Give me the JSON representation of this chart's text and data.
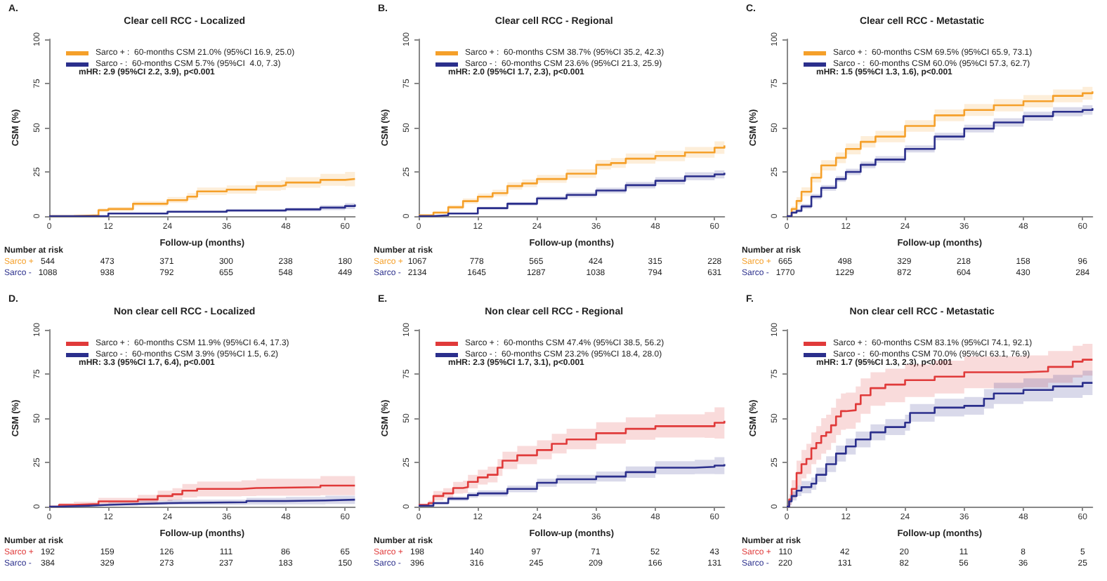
{
  "chart_data": [
    {
      "type": "step",
      "title": "Clear cell RCC - Localized",
      "xlabel": "Follow-up (months)",
      "ylabel": "CSM (%)",
      "xlim": [
        0,
        62
      ],
      "xticks": [
        0,
        12,
        24,
        36,
        48,
        60
      ],
      "ylim": [
        0,
        100
      ],
      "yticks": [
        0,
        25,
        50,
        75,
        100
      ],
      "legend": "top left",
      "annotations": [
        "A.",
        "mHR: 2.9 (95%CI 2.2, 3.9), p<0.001",
        "Number at risk",
        "Sarco +",
        "544",
        "473",
        "371",
        "300",
        "238",
        "180",
        "Sarco -",
        "1088",
        "938",
        "792",
        "655",
        "548",
        "449"
      ],
      "series": [
        {
          "name": "Sarco + :  60-months CSM 21.0% (95%CI 16.9, 25.0)",
          "color": "#f5a02a",
          "x": [
            0,
            5,
            10,
            12,
            17,
            24,
            28,
            30,
            36,
            42,
            47,
            48,
            55,
            60,
            62
          ],
          "values": [
            0,
            0.5,
            3.4,
            4,
            7,
            9,
            11,
            14,
            15,
            17,
            17.5,
            19,
            20.5,
            21,
            21.5
          ],
          "lower": [
            0,
            0.2,
            2.4,
            2.9,
            5.6,
            7.4,
            9.2,
            11.9,
            12.7,
            14.4,
            14.8,
            16.1,
            17.2,
            16.9,
            17.2
          ],
          "upper": [
            0,
            0.9,
            4.5,
            5.2,
            8.5,
            10.8,
            13,
            16.2,
            17.4,
            19.7,
            20.3,
            22,
            23.9,
            25,
            25.9
          ]
        },
        {
          "name": "Sarco - :  60-months CSM 5.7% (95%CI  4.0, 7.3)",
          "color": "#2b2f8c",
          "x": [
            0,
            12,
            24,
            36,
            48,
            55,
            60,
            62
          ],
          "values": [
            0,
            1.5,
            2.5,
            3.2,
            3.8,
            4.8,
            5.7,
            6.5
          ],
          "lower": [
            0,
            1,
            1.8,
            2.3,
            2.7,
            3.4,
            4,
            4.6
          ],
          "upper": [
            0,
            2,
            3.2,
            4.1,
            4.9,
            6.2,
            7.3,
            8.2
          ]
        }
      ]
    },
    {
      "type": "step",
      "title": "Clear cell RCC - Regional",
      "xlabel": "Follow-up (months)",
      "ylabel": "CSM (%)",
      "xlim": [
        0,
        62
      ],
      "xticks": [
        0,
        12,
        24,
        36,
        48,
        60
      ],
      "ylim": [
        0,
        100
      ],
      "yticks": [
        0,
        25,
        50,
        75,
        100
      ],
      "legend": "top left",
      "annotations": [
        "B.",
        "mHR: 2.0 (95%CI 1.7, 2.3), p<0.001",
        "Number at risk",
        "Sarco +",
        "1067",
        "778",
        "565",
        "424",
        "315",
        "228",
        "Sarco -",
        "2134",
        "1645",
        "1287",
        "1038",
        "794",
        "631"
      ],
      "series": [
        {
          "name": "Sarco + :  60-months CSM 38.7% (95%CI 35.2, 42.3)",
          "color": "#f5a02a",
          "x": [
            0,
            3,
            6,
            9,
            12,
            15,
            18,
            21,
            24,
            30,
            36,
            39,
            42,
            48,
            54,
            60,
            62
          ],
          "values": [
            0.5,
            2,
            5,
            8.5,
            11,
            13,
            17,
            18.5,
            21,
            24,
            29,
            30,
            32.5,
            34,
            36,
            38.7,
            40
          ],
          "lower": [
            0.2,
            1.3,
            3.8,
            7,
            9.3,
            11.2,
            15,
            16.4,
            18.8,
            21.6,
            26.4,
            27.3,
            29.7,
            31.1,
            33,
            35.2,
            36.5
          ],
          "upper": [
            0.8,
            2.8,
            6.3,
            10,
            12.8,
            14.9,
            19.1,
            20.7,
            23.3,
            26.5,
            31.7,
            32.8,
            35.4,
            37,
            39.1,
            42.3,
            43.6
          ]
        },
        {
          "name": "Sarco - :  60-months CSM 23.6% (95%CI 21.3, 25.9)",
          "color": "#2b2f8c",
          "x": [
            0,
            3,
            6,
            12,
            18,
            24,
            30,
            36,
            42,
            48,
            54,
            60,
            62
          ],
          "values": [
            0,
            0.5,
            1.5,
            4.5,
            7,
            10,
            12,
            14.5,
            17.5,
            20,
            22.5,
            23.6,
            24.5
          ],
          "lower": [
            0,
            0.2,
            1,
            3.7,
            6,
            8.8,
            10.6,
            12.9,
            15.7,
            18,
            20.3,
            21.3,
            22.2
          ],
          "upper": [
            0,
            0.8,
            2,
            5.3,
            8,
            11.2,
            13.4,
            16.1,
            19.3,
            22,
            24.8,
            25.9,
            26.9
          ]
        }
      ]
    },
    {
      "type": "step",
      "title": "Clear cell RCC - Metastatic",
      "xlabel": "Follow-up (months)",
      "ylabel": "CSM (%)",
      "xlim": [
        0,
        62
      ],
      "xticks": [
        0,
        12,
        24,
        36,
        48,
        60
      ],
      "ylim": [
        0,
        100
      ],
      "yticks": [
        0,
        25,
        50,
        75,
        100
      ],
      "legend": "top left",
      "annotations": [
        "C.",
        "mHR: 1.5 (95%CI 1.3, 1.6), p<0.001",
        "Number at risk",
        "Sarco +",
        "665",
        "498",
        "329",
        "218",
        "158",
        "96",
        "Sarco -",
        "1770",
        "1229",
        "872",
        "604",
        "430",
        "284"
      ],
      "series": [
        {
          "name": "Sarco + :  60-months CSM 69.5% (95%CI 65.9, 73.1)",
          "color": "#f5a02a",
          "x": [
            0,
            1,
            2,
            3,
            5,
            7,
            10,
            12,
            15,
            18,
            24,
            30,
            36,
            42,
            48,
            54,
            60,
            62
          ],
          "values": [
            0,
            4,
            8.6,
            13.8,
            21.7,
            28.7,
            33,
            38,
            42,
            45,
            51,
            57,
            60,
            62.7,
            65,
            68,
            69.5,
            70.5
          ],
          "lower": [
            0,
            2.5,
            6.5,
            11.3,
            19,
            25.8,
            30,
            34.9,
            38.8,
            41.8,
            47.7,
            53.7,
            56.6,
            59.2,
            61.5,
            64.4,
            65.9,
            66.8
          ],
          "upper": [
            0,
            5.5,
            10.7,
            16.3,
            24.4,
            31.6,
            36,
            41.1,
            45.2,
            48.2,
            54.3,
            60.3,
            63.4,
            66.2,
            68.5,
            71.6,
            73.1,
            74.2
          ]
        },
        {
          "name": "Sarco - :  60-months CSM 60.0% (95%CI 57.3, 62.7)",
          "color": "#2b2f8c",
          "x": [
            0,
            1,
            2,
            3,
            5,
            7,
            10,
            12,
            15,
            18,
            24,
            30,
            36,
            42,
            48,
            54,
            60,
            62
          ],
          "values": [
            0,
            2,
            3,
            5.5,
            11,
            16,
            21,
            25,
            29,
            32,
            38,
            45,
            49.5,
            53,
            56.5,
            59,
            60,
            61
          ],
          "lower": [
            0,
            1.2,
            2,
            4.2,
            9.5,
            14.4,
            19.3,
            23.2,
            27.1,
            30.1,
            36,
            42.9,
            47.3,
            50.6,
            54,
            56.4,
            57.3,
            58.2
          ],
          "upper": [
            0,
            2.8,
            4,
            6.8,
            12.5,
            17.6,
            22.7,
            26.8,
            30.9,
            33.9,
            40,
            47.1,
            51.7,
            55.4,
            59,
            61.6,
            62.7,
            63.8
          ]
        }
      ]
    },
    {
      "type": "step",
      "title": "Non clear cell RCC - Localized",
      "xlabel": "Follow-up (months)",
      "ylabel": "CSM (%)",
      "xlim": [
        0,
        62
      ],
      "xticks": [
        0,
        12,
        24,
        36,
        48,
        60
      ],
      "ylim": [
        0,
        100
      ],
      "yticks": [
        0,
        25,
        50,
        75,
        100
      ],
      "legend": "top left",
      "annotations": [
        "D.",
        "mHR: 3.3 (95%CI 1.7, 6.4), p<0.001",
        "Number at risk",
        "Sarco +",
        "192",
        "159",
        "126",
        "111",
        "86",
        "65",
        "Sarco -",
        "384",
        "329",
        "273",
        "237",
        "183",
        "150"
      ],
      "series": [
        {
          "name": "Sarco + :  60-months CSM 11.9% (95%CI 6.4, 17.3)",
          "color": "#e03a3a",
          "x": [
            0,
            2,
            5,
            10,
            18,
            22,
            25,
            27,
            30,
            39,
            42,
            55,
            62
          ],
          "values": [
            0,
            1,
            1.5,
            3,
            4,
            6,
            7,
            9,
            10,
            10.5,
            11,
            11.9,
            11.9
          ],
          "lower": [
            0,
            0.2,
            0.5,
            1.2,
            1.9,
            3.2,
            3.8,
            5.2,
            5.8,
            6,
            6.2,
            6.4,
            6.4
          ],
          "upper": [
            0,
            2,
            2.8,
            5,
            6.6,
            9,
            10.4,
            12.8,
            14.2,
            14.9,
            15.8,
            17.3,
            17.3
          ]
        },
        {
          "name": "Sarco - :  60-months CSM 3.9% (95%CI 1.5, 6.2)",
          "color": "#2b2f8c",
          "x": [
            0,
            2,
            8,
            12,
            18,
            24,
            40,
            48,
            56,
            62
          ],
          "values": [
            0,
            0.5,
            1,
            1.5,
            2,
            2.5,
            3.2,
            3.5,
            3.9,
            3.9
          ],
          "lower": [
            0,
            0.1,
            0.4,
            0.6,
            0.8,
            1,
            1.2,
            1.3,
            1.5,
            1.5
          ],
          "upper": [
            0,
            1,
            1.7,
            2.5,
            3.3,
            4,
            5,
            5.5,
            6.2,
            6.2
          ]
        }
      ]
    },
    {
      "type": "step",
      "title": "Non clear cell RCC - Regional",
      "xlabel": "Follow-up (months)",
      "ylabel": "CSM (%)",
      "xlim": [
        0,
        62
      ],
      "xticks": [
        0,
        12,
        24,
        36,
        48,
        60
      ],
      "ylim": [
        0,
        100
      ],
      "yticks": [
        0,
        25,
        50,
        75,
        100
      ],
      "legend": "top left",
      "annotations": [
        "E.",
        "mHR: 2.3 (95%CI 1.7, 3.1), p<0.001",
        "Number at risk",
        "Sarco +",
        "198",
        "140",
        "97",
        "71",
        "52",
        "43",
        "Sarco -",
        "396",
        "316",
        "245",
        "209",
        "166",
        "131"
      ],
      "series": [
        {
          "name": "Sarco + :  60-months CSM 47.4% (95%CI 38.5, 56.2)",
          "color": "#e03a3a",
          "x": [
            0,
            2,
            3,
            5,
            7,
            9,
            10,
            12,
            14,
            16,
            17,
            20,
            24,
            27,
            30,
            36,
            42,
            48,
            58,
            60,
            62
          ],
          "values": [
            1,
            2,
            6,
            7.5,
            10.5,
            11,
            14,
            16.5,
            18,
            22,
            26,
            29,
            32,
            35.5,
            38,
            41.5,
            44,
            45.5,
            45.5,
            47.4,
            48.5
          ],
          "lower": [
            0.3,
            0.8,
            3.5,
            4.8,
            7.3,
            7.6,
            10.3,
            12.5,
            13.7,
            17.4,
            21.2,
            24,
            26.8,
            30.1,
            32.4,
            35.6,
            37.8,
            39.1,
            38.9,
            38.5,
            39.5
          ],
          "upper": [
            1.7,
            3.4,
            8.8,
            10.4,
            14,
            14.7,
            18,
            20.8,
            22.6,
            26.9,
            31.1,
            34.3,
            37.5,
            41.2,
            44,
            47.7,
            50.5,
            52.2,
            53.5,
            56.2,
            57.5
          ]
        },
        {
          "name": "Sarco - :  60-months CSM 23.2% (95%CI 18.4, 28.0)",
          "color": "#2b2f8c",
          "x": [
            0,
            3,
            6,
            10,
            12,
            18,
            24,
            28,
            36,
            42,
            48,
            56,
            60,
            62
          ],
          "values": [
            0.5,
            2,
            4.5,
            6.5,
            7.5,
            10,
            13.5,
            15.5,
            17,
            19.5,
            22,
            22.5,
            23.2,
            24
          ],
          "lower": [
            0.2,
            1.2,
            3.2,
            5,
            5.8,
            8.1,
            11.2,
            13,
            14.2,
            16.3,
            18.3,
            18.5,
            18.4,
            19.1
          ],
          "upper": [
            0.8,
            2.8,
            5.8,
            8,
            9.2,
            11.9,
            15.8,
            18,
            19.8,
            22.7,
            25.7,
            26.5,
            28,
            28.9
          ]
        }
      ]
    },
    {
      "type": "step",
      "title": "Non clear cell RCC - Metastatic",
      "xlabel": "Follow-up (months)",
      "ylabel": "CSM (%)",
      "xlim": [
        0,
        62
      ],
      "xticks": [
        0,
        12,
        24,
        36,
        48,
        60
      ],
      "ylim": [
        0,
        100
      ],
      "yticks": [
        0,
        25,
        50,
        75,
        100
      ],
      "legend": "top left",
      "annotations": [
        "F.",
        "mHR: 1.7 (95%CI 1.3, 2.3), p<0.001",
        "Number at risk",
        "Sarco +",
        "110",
        "42",
        "20",
        "11",
        "8",
        "5",
        "Sarco -",
        "220",
        "131",
        "82",
        "56",
        "36",
        "25"
      ],
      "series": [
        {
          "name": "Sarco + :  60-months CSM 83.1% (95%CI 74.1, 92.1)",
          "color": "#e03a3a",
          "x": [
            0,
            0.5,
            1,
            2,
            3,
            4,
            5,
            6,
            7,
            8,
            9,
            10,
            11,
            12,
            14,
            15,
            17,
            20,
            24,
            30,
            36,
            48,
            53,
            58,
            60,
            62
          ],
          "values": [
            0,
            4,
            10,
            19,
            24,
            27,
            33,
            36,
            40,
            42,
            46,
            51,
            54,
            54.5,
            58,
            63,
            67,
            69,
            71.5,
            73.5,
            76,
            76.5,
            79,
            82,
            83.1,
            83.1
          ],
          "lower": [
            0,
            1,
            5,
            12,
            16,
            18.5,
            24,
            26.5,
            30,
            32,
            36,
            40.5,
            43.5,
            44,
            47.5,
            52.5,
            57,
            59,
            62,
            64,
            67,
            67.5,
            70,
            73,
            74.1,
            74.1
          ],
          "upper": [
            0,
            7,
            15,
            26,
            32,
            35.5,
            42,
            45.5,
            50,
            52,
            56,
            61,
            64,
            64.5,
            68,
            72.5,
            76,
            78,
            80.5,
            82.5,
            85,
            85.5,
            88,
            91,
            92.1,
            92.1
          ]
        },
        {
          "name": "Sarco - :  60-months CSM 70.0% (95%CI 63.1, 76.9)",
          "color": "#2b2f8c",
          "x": [
            0,
            0.5,
            1,
            2,
            3,
            5,
            6,
            8,
            10,
            12,
            14,
            17,
            20,
            24,
            25,
            30,
            36,
            40,
            42,
            48,
            54,
            60,
            62
          ],
          "values": [
            0,
            3,
            6,
            9,
            11,
            13,
            18,
            24,
            30,
            34,
            38,
            42,
            45,
            47.5,
            53,
            56,
            57,
            61,
            64,
            66,
            68,
            70,
            70
          ],
          "lower": [
            0,
            1,
            3.5,
            6,
            7.5,
            9.5,
            14,
            19.5,
            25.5,
            29.5,
            33.5,
            37.5,
            40.5,
            43,
            48,
            51,
            52,
            55.5,
            58,
            59.5,
            61.5,
            63.1,
            63.1
          ],
          "upper": [
            0,
            5,
            8.5,
            12,
            14.5,
            16.5,
            22,
            28.5,
            34.5,
            38.5,
            42.5,
            46.5,
            49.5,
            52,
            58,
            61,
            62,
            66.5,
            70,
            72.5,
            74.5,
            76.9,
            76.9
          ]
        }
      ]
    }
  ]
}
